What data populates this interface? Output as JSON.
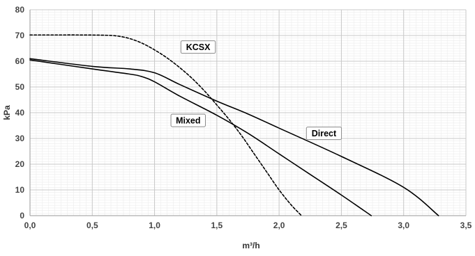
{
  "chart_data": {
    "type": "line",
    "title": "",
    "xlabel": "m³/h",
    "ylabel": "kPa",
    "xlim": [
      0,
      3.5
    ],
    "ylim": [
      0,
      80
    ],
    "x_ticks": [
      0,
      0.5,
      1.0,
      1.5,
      2.0,
      2.5,
      3.0,
      3.5
    ],
    "x_tick_labels": [
      "0,0",
      "0,5",
      "1,0",
      "1,5",
      "2,0",
      "2,5",
      "3,0",
      "3,5"
    ],
    "y_ticks": [
      0,
      10,
      20,
      30,
      40,
      50,
      60,
      70,
      80
    ],
    "y_tick_labels": [
      "0",
      "10",
      "20",
      "30",
      "40",
      "50",
      "60",
      "70",
      "80"
    ],
    "grid": true,
    "legend": "none",
    "series": [
      {
        "name": "KCSX",
        "style": "dashed",
        "color": "#000000",
        "label_at": [
          1.35,
          65.5
        ],
        "x": [
          0,
          0.2,
          0.4,
          0.6,
          0.7,
          0.8,
          0.9,
          1.0,
          1.1,
          1.2,
          1.3,
          1.4,
          1.5,
          1.6,
          1.7,
          1.8,
          1.9,
          2.0,
          2.1,
          2.18
        ],
        "values": [
          70.2,
          70.2,
          70.2,
          70.1,
          69.8,
          68.8,
          67.0,
          64.4,
          61.3,
          57.6,
          53.4,
          48.5,
          43.0,
          37.3,
          31.0,
          24.0,
          17.0,
          10.0,
          4.0,
          0
        ]
      },
      {
        "name": "Mixed",
        "style": "solid",
        "color": "#000000",
        "label_at": [
          1.27,
          37.0
        ],
        "x": [
          0,
          0.5,
          0.8,
          0.9,
          1.0,
          1.2,
          1.5,
          1.75,
          2.0,
          2.25,
          2.5,
          2.74
        ],
        "values": [
          60.5,
          57.0,
          55.0,
          54.0,
          52.0,
          46.5,
          39.0,
          32.0,
          24.0,
          16.0,
          8.0,
          0
        ]
      },
      {
        "name": "Direct",
        "style": "solid",
        "color": "#000000",
        "label_at": [
          2.36,
          32.0
        ],
        "x": [
          0,
          0.5,
          0.8,
          1.0,
          1.2,
          1.5,
          1.75,
          2.0,
          2.5,
          3.0,
          3.28
        ],
        "values": [
          61.0,
          58.0,
          57.0,
          55.5,
          51.0,
          44.5,
          39.5,
          34.0,
          23.0,
          11.0,
          0
        ]
      }
    ]
  }
}
